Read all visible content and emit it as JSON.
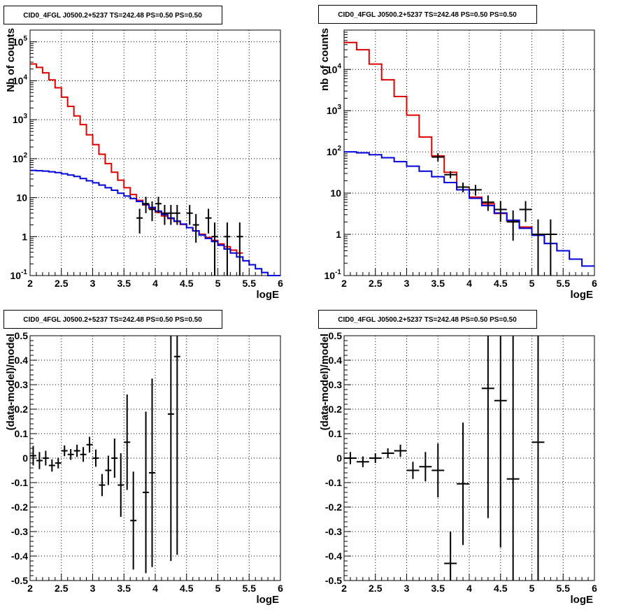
{
  "colors": {
    "data": "#000000",
    "total_model": "#e00000",
    "component_model": "#0000dd",
    "grid": "#000000"
  },
  "chart_data": [
    {
      "type": "histogram",
      "panel": "top-left",
      "title": "CID0_4FGL J0500.2+5237 TS=242.48 PS=0.50 PS=0.50",
      "xlabel": "logE",
      "ylabel": "Nb of counts",
      "xlim": [
        2,
        6
      ],
      "ylim": [
        0.1,
        200000
      ],
      "yscale": "log",
      "grid": true,
      "x_ticks": [
        "2",
        "2.5",
        "3",
        "3.5",
        "4",
        "4.5",
        "5",
        "5.5",
        "6"
      ],
      "y_ticks": [
        {
          "base": "10",
          "exp": "5",
          "value": 100000
        },
        {
          "base": "10",
          "exp": "4",
          "value": 10000
        },
        {
          "base": "10",
          "exp": "3",
          "value": 1000
        },
        {
          "base": "10",
          "exp": "2",
          "value": 100
        },
        {
          "base": "10",
          "exp": "",
          "value": 10
        },
        {
          "base": "1",
          "exp": "",
          "value": 1
        },
        {
          "base": "10",
          "exp": "-1",
          "value": 0.1
        }
      ],
      "bin_width": 0.1,
      "series": [
        {
          "name": "total_model",
          "color": "#e00000",
          "bin_starts": [
            2.0,
            2.1,
            2.2,
            2.3,
            2.4,
            2.5,
            2.6,
            2.7,
            2.8,
            2.9,
            3.0,
            3.1,
            3.2,
            3.3,
            3.4,
            3.5,
            3.6,
            3.7,
            3.8,
            3.9,
            4.0,
            4.1,
            4.2,
            4.3,
            4.4,
            4.5,
            4.6,
            4.7,
            4.8,
            4.9,
            5.0,
            5.1,
            5.2,
            5.3
          ],
          "values": [
            27000,
            22000,
            16000,
            10500,
            6600,
            3800,
            2200,
            1250,
            750,
            410,
            230,
            130,
            75,
            45,
            28,
            18,
            12,
            8.5,
            6.5,
            5.3,
            4.2,
            3.4,
            2.9,
            2.45,
            2.05,
            1.7,
            1.4,
            1.15,
            0.95,
            0.8,
            0.65,
            0.55,
            0.45,
            0.38
          ]
        },
        {
          "name": "component_model",
          "color": "#0000dd",
          "bin_starts": [
            2.0,
            2.1,
            2.2,
            2.3,
            2.4,
            2.5,
            2.6,
            2.7,
            2.8,
            2.9,
            3.0,
            3.1,
            3.2,
            3.3,
            3.4,
            3.5,
            3.6,
            3.7,
            3.8,
            3.9,
            4.0,
            4.1,
            4.2,
            4.3,
            4.4,
            4.5,
            4.6,
            4.7,
            4.8,
            4.9,
            5.0,
            5.1,
            5.2,
            5.3,
            5.4,
            5.5,
            5.6,
            5.7,
            5.8,
            5.9
          ],
          "values": [
            50,
            49,
            48,
            46,
            44,
            41,
            38,
            35,
            31,
            27,
            24,
            21,
            18,
            15.5,
            13,
            11,
            9.5,
            8,
            6.7,
            5.6,
            4.5,
            3.7,
            3.0,
            2.5,
            2.1,
            1.7,
            1.4,
            1.1,
            0.9,
            0.75,
            0.6,
            0.48,
            0.38,
            0.3,
            0.24,
            0.19,
            0.15,
            0.12,
            0.1,
            0.1
          ]
        }
      ],
      "data_points": [
        {
          "x": 3.75,
          "y": 3,
          "err_lo": 1.8,
          "err_hi": 2.2
        },
        {
          "x": 3.85,
          "y": 7,
          "err_lo": 3,
          "err_hi": 3.5
        },
        {
          "x": 3.95,
          "y": 5,
          "err_lo": 2.5,
          "err_hi": 3
        },
        {
          "x": 4.05,
          "y": 7,
          "err_lo": 3,
          "err_hi": 3.5
        },
        {
          "x": 4.15,
          "y": 4,
          "err_lo": 2,
          "err_hi": 2.5
        },
        {
          "x": 4.25,
          "y": 4,
          "err_lo": 2,
          "err_hi": 2.5
        },
        {
          "x": 4.35,
          "y": 4,
          "err_lo": 2,
          "err_hi": 2.5
        },
        {
          "x": 4.55,
          "y": 4,
          "err_lo": 2,
          "err_hi": 2.5
        },
        {
          "x": 4.65,
          "y": 2,
          "err_lo": 1.3,
          "err_hi": 1.8
        },
        {
          "x": 4.85,
          "y": 3,
          "err_lo": 1.8,
          "err_hi": 2.2
        },
        {
          "x": 4.95,
          "y": 1,
          "err_lo": 0.9,
          "err_hi": 1.3
        },
        {
          "x": 5.15,
          "y": 1,
          "err_lo": 0.9,
          "err_hi": 1.3
        },
        {
          "x": 5.35,
          "y": 1,
          "err_lo": 0.9,
          "err_hi": 1.3
        }
      ]
    },
    {
      "type": "histogram",
      "panel": "top-right",
      "title": "CID0_4FGL J0500.2+5237 TS=242.48 PS=0.50 PS=0.50",
      "xlabel": "logE",
      "ylabel": "nb of counts",
      "xlim": [
        2,
        6
      ],
      "ylim": [
        0.1,
        90000
      ],
      "yscale": "log",
      "grid": true,
      "x_ticks": [
        "2",
        "2.5",
        "3",
        "3.5",
        "4",
        "4.5",
        "5",
        "5.5",
        "6"
      ],
      "y_ticks": [
        {
          "base": "10",
          "exp": "4",
          "value": 10000
        },
        {
          "base": "10",
          "exp": "3",
          "value": 1000
        },
        {
          "base": "10",
          "exp": "2",
          "value": 100
        },
        {
          "base": "10",
          "exp": "",
          "value": 10
        },
        {
          "base": "1",
          "exp": "",
          "value": 1
        },
        {
          "base": "10",
          "exp": "-1",
          "value": 0.1
        }
      ],
      "bin_width": 0.2,
      "series": [
        {
          "name": "total_model",
          "color": "#e00000",
          "bin_starts": [
            2.0,
            2.2,
            2.4,
            2.6,
            2.8,
            3.0,
            3.2,
            3.4,
            3.6,
            3.8,
            4.0,
            4.2,
            4.4,
            4.6,
            4.8,
            5.0,
            5.2
          ],
          "values": [
            45000,
            30000,
            13500,
            5600,
            2200,
            780,
            230,
            80,
            32,
            14,
            8,
            5.5,
            3.2,
            2.1,
            1.5,
            1.0,
            0.6
          ]
        },
        {
          "name": "component_model",
          "color": "#0000dd",
          "bin_starts": [
            2.0,
            2.2,
            2.4,
            2.6,
            2.8,
            3.0,
            3.2,
            3.4,
            3.6,
            3.8,
            4.0,
            4.2,
            4.4,
            4.6,
            4.8,
            5.0,
            5.2,
            5.4,
            5.6,
            5.8
          ],
          "values": [
            100,
            95,
            85,
            72,
            58,
            45,
            34,
            25,
            18,
            12,
            7.5,
            5,
            3.3,
            2.2,
            1.4,
            0.95,
            0.6,
            0.4,
            0.25,
            0.17
          ]
        }
      ],
      "data_points": [
        {
          "x": 3.5,
          "y": 75,
          "err_lo": 16,
          "err_hi": 18
        },
        {
          "x": 3.7,
          "y": 28,
          "err_lo": 5,
          "err_hi": 6
        },
        {
          "x": 3.9,
          "y": 14,
          "err_lo": 3.5,
          "err_hi": 4
        },
        {
          "x": 4.1,
          "y": 12,
          "err_lo": 3.3,
          "err_hi": 3.8
        },
        {
          "x": 4.3,
          "y": 6,
          "err_lo": 2.3,
          "err_hi": 2.8
        },
        {
          "x": 4.5,
          "y": 4,
          "err_lo": 2,
          "err_hi": 2.4
        },
        {
          "x": 4.7,
          "y": 2,
          "err_lo": 1.3,
          "err_hi": 1.8
        },
        {
          "x": 4.9,
          "y": 4,
          "err_lo": 2,
          "err_hi": 2.4
        },
        {
          "x": 5.1,
          "y": 1,
          "err_lo": 0.9,
          "err_hi": 1.3
        },
        {
          "x": 5.3,
          "y": 1,
          "err_lo": 0.9,
          "err_hi": 1.3
        }
      ]
    },
    {
      "type": "scatter",
      "panel": "bottom-left",
      "title": "CID0_4FGL J0500.2+5237 TS=242.48 PS=0.50 PS=0.50",
      "xlabel": "logE",
      "ylabel": "(data-model)/model",
      "xlim": [
        2,
        6
      ],
      "ylim": [
        -0.5,
        0.5
      ],
      "yscale": "linear",
      "grid": true,
      "x_ticks": [
        "2",
        "2.5",
        "3",
        "3.5",
        "4",
        "4.5",
        "5",
        "5.5",
        "6"
      ],
      "y_ticks": [
        "0.5",
        "0.4",
        "0.3",
        "0.2",
        "0.1",
        "0",
        "-0.1",
        "-0.2",
        "-0.3",
        "-0.4",
        "-0.5"
      ],
      "x_half_width": 0.05,
      "points": [
        {
          "x": 2.05,
          "y": 0.01,
          "err": 0.04
        },
        {
          "x": 2.15,
          "y": -0.01,
          "err": 0.035
        },
        {
          "x": 2.25,
          "y": 0.0,
          "err": 0.03
        },
        {
          "x": 2.35,
          "y": -0.03,
          "err": 0.025
        },
        {
          "x": 2.45,
          "y": -0.02,
          "err": 0.022
        },
        {
          "x": 2.55,
          "y": 0.03,
          "err": 0.022
        },
        {
          "x": 2.65,
          "y": 0.015,
          "err": 0.022
        },
        {
          "x": 2.75,
          "y": 0.03,
          "err": 0.025
        },
        {
          "x": 2.85,
          "y": 0.015,
          "err": 0.03
        },
        {
          "x": 2.95,
          "y": 0.055,
          "err": 0.032
        },
        {
          "x": 3.05,
          "y": 0.0,
          "err": 0.035
        },
        {
          "x": 3.15,
          "y": -0.11,
          "err": 0.045
        },
        {
          "x": 3.25,
          "y": -0.05,
          "err": 0.06
        },
        {
          "x": 3.35,
          "y": -0.0,
          "err": 0.08
        },
        {
          "x": 3.45,
          "y": -0.11,
          "err": 0.13
        },
        {
          "x": 3.55,
          "y": 0.065,
          "err": 0.195
        },
        {
          "x": 3.65,
          "y": -0.255,
          "err": 0.2
        },
        {
          "x": 3.85,
          "y": -0.14,
          "err": 0.33
        },
        {
          "x": 3.95,
          "y": -0.06,
          "err": 0.385
        },
        {
          "x": 4.25,
          "y": 0.18,
          "err": 0.6
        },
        {
          "x": 4.35,
          "y": 0.415,
          "err": 0.81
        }
      ]
    },
    {
      "type": "scatter",
      "panel": "bottom-right",
      "title": "CID0_4FGL J0500.2+5237 TS=242.48 PS=0.50 PS=0.50",
      "xlabel": "logE",
      "ylabel": "(data-model)/model",
      "xlim": [
        2,
        6
      ],
      "ylim": [
        -0.5,
        0.5
      ],
      "yscale": "linear",
      "grid": true,
      "x_ticks": [
        "2",
        "2.5",
        "3",
        "3.5",
        "4",
        "4.5",
        "5",
        "5.5",
        "6"
      ],
      "y_ticks": [
        "0.5",
        "0.4",
        "0.3",
        "0.2",
        "0.1",
        "0",
        "-0.1",
        "-0.2",
        "-0.3",
        "-0.4",
        "-0.5"
      ],
      "x_half_width": 0.1,
      "points": [
        {
          "x": 2.1,
          "y": 0.0,
          "err": 0.025
        },
        {
          "x": 2.3,
          "y": -0.015,
          "err": 0.022
        },
        {
          "x": 2.5,
          "y": 0.0,
          "err": 0.02
        },
        {
          "x": 2.7,
          "y": 0.02,
          "err": 0.02
        },
        {
          "x": 2.9,
          "y": 0.03,
          "err": 0.025
        },
        {
          "x": 3.1,
          "y": -0.05,
          "err": 0.035
        },
        {
          "x": 3.3,
          "y": -0.035,
          "err": 0.06
        },
        {
          "x": 3.5,
          "y": -0.05,
          "err": 0.11
        },
        {
          "x": 3.7,
          "y": -0.43,
          "err": 0.13
        },
        {
          "x": 3.9,
          "y": -0.105,
          "err": 0.25
        },
        {
          "x": 4.3,
          "y": 0.285,
          "err": 0.53
        },
        {
          "x": 4.5,
          "y": 0.235,
          "err": 0.6
        },
        {
          "x": 4.7,
          "y": -0.085,
          "err": 0.7
        },
        {
          "x": 5.1,
          "y": 0.065,
          "err": 1.0
        }
      ]
    }
  ]
}
